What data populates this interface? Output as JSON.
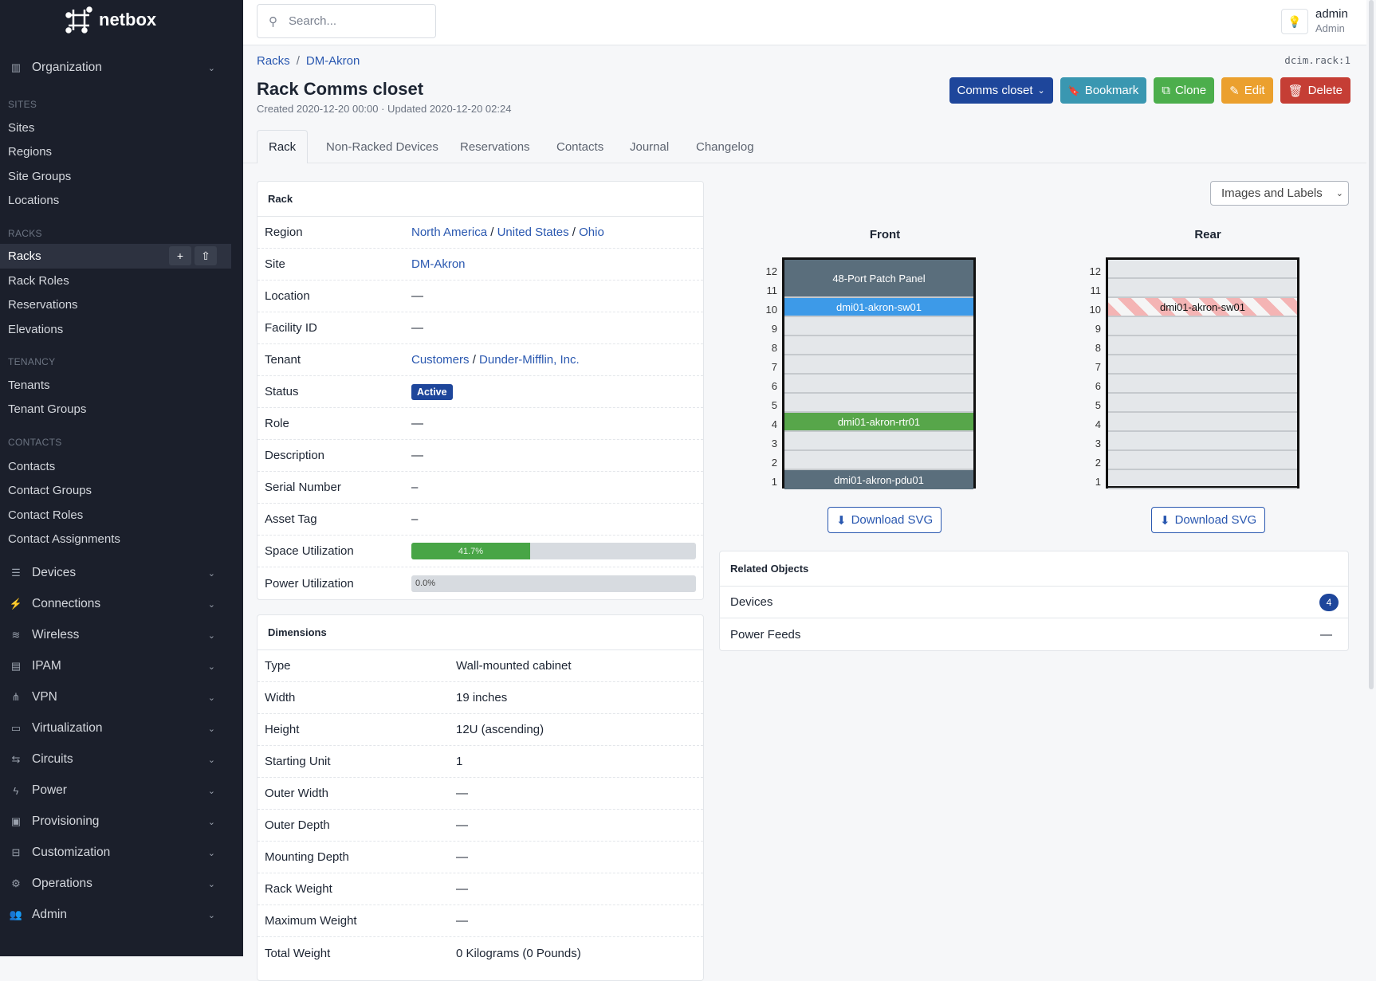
{
  "app": {
    "name": "netbox"
  },
  "sidebar": {
    "organization": "Organization",
    "sections": [
      {
        "title": "SITES",
        "items": [
          "Sites",
          "Regions",
          "Site Groups",
          "Locations"
        ]
      },
      {
        "title": "RACKS",
        "items": [
          "Racks",
          "Rack Roles",
          "Reservations",
          "Elevations"
        ]
      },
      {
        "title": "TENANCY",
        "items": [
          "Tenants",
          "Tenant Groups"
        ]
      },
      {
        "title": "CONTACTS",
        "items": [
          "Contacts",
          "Contact Groups",
          "Contact Roles",
          "Contact Assignments"
        ]
      }
    ],
    "active_item": "Racks",
    "groups": [
      "Devices",
      "Connections",
      "Wireless",
      "IPAM",
      "VPN",
      "Virtualization",
      "Circuits",
      "Power",
      "Provisioning",
      "Customization",
      "Operations",
      "Admin"
    ]
  },
  "header": {
    "search_placeholder": "Search...",
    "user": "admin",
    "role": "Admin"
  },
  "breadcrumb": [
    "Racks",
    "DM-Akron"
  ],
  "object_id": "dcim.rack:1",
  "title": "Rack Comms closet",
  "meta": "Created 2020-12-20 00:00 · Updated 2020-12-20 02:24",
  "buttons": {
    "rack_select": "Comms closet",
    "bookmark": "Bookmark",
    "clone": "Clone",
    "edit": "Edit",
    "delete": "Delete"
  },
  "button_colors": {
    "rack_select": "#1e469b",
    "bookmark": "#3a97b1",
    "clone": "#4cae4c",
    "edit": "#eba02e",
    "delete": "#c53e35"
  },
  "tabs": [
    "Rack",
    "Non-Racked Devices",
    "Reservations",
    "Contacts",
    "Journal",
    "Changelog"
  ],
  "active_tab": "Rack",
  "rack_card": {
    "title": "Rack",
    "rows": {
      "region": {
        "label": "Region",
        "values": [
          "North America",
          "United States",
          "Ohio"
        ]
      },
      "site": {
        "label": "Site",
        "value": "DM-Akron"
      },
      "location": {
        "label": "Location",
        "value": "—"
      },
      "facility": {
        "label": "Facility ID",
        "value": "—"
      },
      "tenant": {
        "label": "Tenant",
        "values": [
          "Customers",
          "Dunder-Mifflin, Inc."
        ]
      },
      "status": {
        "label": "Status",
        "value": "Active"
      },
      "role": {
        "label": "Role",
        "value": "—"
      },
      "description": {
        "label": "Description",
        "value": "—"
      },
      "serial": {
        "label": "Serial Number",
        "value": "–"
      },
      "asset": {
        "label": "Asset Tag",
        "value": "–"
      },
      "space": {
        "label": "Space Utilization",
        "value": "41.7%",
        "percent": 41.7
      },
      "power": {
        "label": "Power Utilization",
        "value": "0.0%",
        "percent": 0
      }
    }
  },
  "dimensions": {
    "title": "Dimensions",
    "rows": [
      {
        "label": "Type",
        "value": "Wall-mounted cabinet"
      },
      {
        "label": "Width",
        "value": "19 inches"
      },
      {
        "label": "Height",
        "value": "12U (ascending)"
      },
      {
        "label": "Starting Unit",
        "value": "1"
      },
      {
        "label": "Outer Width",
        "value": "—"
      },
      {
        "label": "Outer Depth",
        "value": "—"
      },
      {
        "label": "Mounting Depth",
        "value": "—"
      },
      {
        "label": "Rack Weight",
        "value": "—"
      },
      {
        "label": "Maximum Weight",
        "value": "—"
      },
      {
        "label": "Total Weight",
        "value": "0 Kilograms (0 Pounds)"
      }
    ]
  },
  "elevation": {
    "view_select": "Images and Labels",
    "front_label": "Front",
    "rear_label": "Rear",
    "units": [
      "12",
      "11",
      "10",
      "9",
      "8",
      "7",
      "6",
      "5",
      "4",
      "3",
      "2",
      "1"
    ],
    "front_devices": [
      {
        "name": "48-Port Patch Panel",
        "top_unit": 12,
        "height": 2,
        "color": "#5a6e7c"
      },
      {
        "name": "dmi01-akron-sw01",
        "top_unit": 10,
        "height": 1,
        "color": "#3d9ae8"
      },
      {
        "name": "dmi01-akron-rtr01",
        "top_unit": 4,
        "height": 1,
        "color": "#57a64a"
      },
      {
        "name": "dmi01-akron-pdu01",
        "top_unit": 1,
        "height": 1,
        "color": "#5a6e7c"
      }
    ],
    "rear_devices": [
      {
        "name": "dmi01-akron-sw01",
        "top_unit": 10,
        "height": 1,
        "occupied_from_front": true
      }
    ],
    "download": "Download SVG"
  },
  "related": {
    "title": "Related Objects",
    "rows": [
      {
        "label": "Devices",
        "count": "4"
      },
      {
        "label": "Power Feeds",
        "value": "—"
      }
    ]
  }
}
